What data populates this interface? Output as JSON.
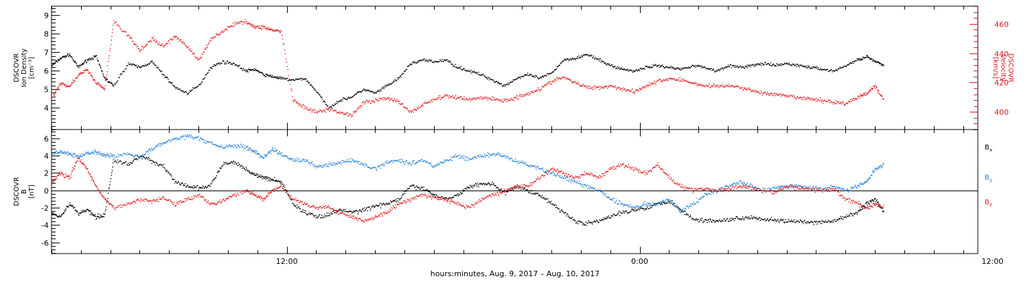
{
  "figure": {
    "x_axis_caption": "hours:minutes, Aug.  9, 2017 – Aug. 10, 2017",
    "x_tick_labels": [
      "12:00",
      "0:00",
      "12:00"
    ],
    "colors": {
      "black": "#000000",
      "red": "#e31a1c",
      "blue": "#1f7fd6"
    }
  },
  "chart_data": [
    {
      "type": "scatter",
      "panel": "plasma",
      "x": {
        "range_hours_from_midnight_aug9": [
          4.0,
          35.5
        ],
        "major_tick_hours": [
          12,
          24,
          36
        ],
        "tick_labels": [
          "12:00",
          "0:00",
          "12:00"
        ]
      },
      "y_left": {
        "label_lines": [
          "DSCOVR",
          "Ion Density",
          "[cm⁻³]"
        ],
        "range": [
          2.8,
          9.5
        ],
        "ticks": [
          4,
          5,
          6,
          7,
          8,
          9
        ],
        "tick_labels": [
          "4",
          "5",
          "6",
          "7",
          "8",
          "9"
        ]
      },
      "y_right": {
        "label_lines": [
          "DSCOVR",
          "Velocity",
          "[km/s]"
        ],
        "range": [
          388,
          472
        ],
        "ticks": [
          400,
          420,
          440,
          460
        ],
        "tick_labels": [
          "400",
          "420",
          "440",
          "460"
        ],
        "color": "#e31a1c"
      },
      "series": [
        {
          "axis": "left",
          "color": "#000000",
          "x": [
            4.0,
            4.3,
            4.6,
            4.9,
            5.2,
            5.5,
            5.8,
            6.1,
            6.6,
            7.0,
            7.4,
            7.8,
            8.2,
            8.6,
            9.0,
            9.4,
            9.8,
            10.2,
            10.6,
            10.9,
            11.2,
            11.5,
            11.8,
            12.2,
            12.6,
            13.0,
            13.4,
            13.8,
            14.2,
            14.6,
            15.0,
            15.4,
            15.8,
            16.2,
            16.6,
            17.0,
            17.4,
            17.8,
            18.2,
            18.6,
            19.0,
            19.4,
            19.8,
            20.2,
            20.6,
            21.0,
            21.4,
            21.8,
            22.2,
            22.6,
            23.0,
            23.4,
            23.8,
            24.2,
            24.6,
            25.0,
            25.4,
            25.8,
            26.2,
            26.6,
            27.0,
            27.4,
            27.8,
            28.2,
            28.6,
            29.0,
            29.4,
            29.8,
            30.2,
            30.6,
            31.0,
            31.4,
            31.7,
            32.0,
            32.3
          ],
          "y": [
            6.3,
            6.7,
            6.9,
            6.2,
            6.6,
            6.8,
            5.6,
            5.2,
            6.4,
            6.2,
            6.5,
            5.8,
            5.1,
            4.8,
            5.2,
            6.2,
            6.5,
            6.4,
            6.0,
            6.1,
            5.8,
            5.7,
            5.6,
            5.5,
            5.6,
            4.9,
            4.0,
            4.4,
            4.6,
            5.0,
            4.8,
            5.2,
            5.6,
            6.4,
            6.6,
            6.5,
            6.6,
            6.2,
            6.0,
            5.8,
            5.5,
            5.2,
            5.6,
            5.8,
            5.6,
            5.9,
            6.6,
            6.7,
            6.9,
            6.6,
            6.3,
            6.1,
            6.0,
            6.2,
            6.3,
            6.2,
            6.1,
            6.3,
            6.2,
            6.0,
            6.3,
            6.2,
            6.3,
            6.4,
            6.3,
            6.4,
            6.3,
            6.2,
            6.1,
            6.0,
            6.3,
            6.6,
            6.8,
            6.5,
            6.3
          ]
        },
        {
          "axis": "right",
          "color": "#e31a1c",
          "x": [
            4.0,
            4.3,
            4.6,
            4.9,
            5.2,
            5.5,
            5.8,
            6.1,
            6.6,
            7.0,
            7.4,
            7.8,
            8.2,
            8.6,
            9.0,
            9.4,
            9.8,
            10.2,
            10.6,
            10.9,
            11.2,
            11.5,
            11.8,
            12.2,
            12.6,
            13.0,
            13.4,
            13.8,
            14.2,
            14.6,
            15.0,
            15.4,
            15.8,
            16.2,
            16.6,
            17.0,
            17.4,
            17.8,
            18.2,
            18.6,
            19.0,
            19.4,
            19.8,
            20.2,
            20.6,
            21.0,
            21.4,
            21.8,
            22.2,
            22.6,
            23.0,
            23.4,
            23.8,
            24.2,
            24.6,
            25.0,
            25.4,
            25.8,
            26.2,
            26.6,
            27.0,
            27.4,
            27.8,
            28.2,
            28.6,
            29.0,
            29.4,
            29.8,
            30.2,
            30.6,
            31.0,
            31.4,
            31.7,
            32.0,
            32.3
          ],
          "y": [
            410,
            420,
            418,
            425,
            429,
            420,
            416,
            462,
            452,
            442,
            450,
            445,
            452,
            445,
            435,
            450,
            455,
            460,
            462,
            458,
            458,
            456,
            455,
            408,
            403,
            400,
            402,
            400,
            398,
            407,
            408,
            410,
            407,
            400,
            405,
            409,
            411,
            410,
            409,
            410,
            409,
            408,
            410,
            413,
            416,
            421,
            424,
            420,
            417,
            417,
            418,
            416,
            414,
            418,
            421,
            423,
            422,
            420,
            418,
            418,
            418,
            417,
            415,
            413,
            412,
            411,
            410,
            409,
            408,
            407,
            406,
            410,
            413,
            418,
            408
          ]
        }
      ]
    },
    {
      "type": "scatter",
      "panel": "magnetic-field",
      "x": {
        "range_hours_from_midnight_aug9": [
          4.0,
          35.5
        ],
        "major_tick_hours": [
          12,
          24,
          36
        ],
        "tick_labels": [
          "12:00",
          "0:00",
          "12:00"
        ]
      },
      "y": {
        "label_lines": [
          "DSCOVR",
          "B",
          "[nT]"
        ],
        "range": [
          -7.3,
          7.0
        ],
        "ticks": [
          -6,
          -4,
          -2,
          0,
          2,
          4,
          6
        ],
        "tick_labels": [
          "-6",
          "-4",
          "-2",
          "0",
          "2",
          "4",
          "6"
        ],
        "zero_line": true
      },
      "series": [
        {
          "name": "Bx",
          "color": "#000000",
          "x": [
            4.0,
            4.3,
            4.6,
            4.9,
            5.2,
            5.5,
            5.8,
            6.1,
            6.6,
            7.0,
            7.4,
            7.8,
            8.2,
            8.6,
            9.0,
            9.4,
            9.8,
            10.2,
            10.6,
            10.9,
            11.2,
            11.5,
            11.8,
            12.2,
            12.6,
            13.0,
            13.4,
            13.8,
            14.2,
            14.6,
            15.0,
            15.4,
            15.8,
            16.2,
            16.6,
            17.0,
            17.4,
            17.8,
            18.2,
            18.6,
            19.0,
            19.4,
            19.8,
            20.2,
            20.6,
            21.0,
            21.4,
            21.8,
            22.2,
            22.6,
            23.0,
            23.4,
            23.8,
            24.2,
            24.6,
            25.0,
            25.4,
            25.8,
            26.2,
            26.6,
            27.0,
            27.4,
            27.8,
            28.2,
            28.6,
            29.0,
            29.4,
            29.8,
            30.2,
            30.6,
            31.0,
            31.4,
            31.7,
            32.0,
            32.3
          ],
          "y": [
            -2.5,
            -3.0,
            -1.5,
            -2.6,
            -2.2,
            -3.0,
            -2.8,
            3.5,
            3.0,
            4.0,
            3.4,
            2.8,
            1.0,
            0.5,
            0.3,
            0.6,
            3.0,
            3.3,
            2.5,
            1.8,
            1.5,
            1.3,
            1.0,
            -1.5,
            -2.5,
            -3.0,
            -2.8,
            -2.2,
            -2.5,
            -2.2,
            -1.8,
            -1.5,
            -1.0,
            0.5,
            0.3,
            -0.5,
            -1.0,
            -0.5,
            0.5,
            0.8,
            0.8,
            -0.3,
            0.5,
            0.0,
            -0.5,
            -1.5,
            -2.5,
            -3.5,
            -3.8,
            -3.5,
            -3.0,
            -2.5,
            -2.2,
            -2.0,
            -1.5,
            -1.2,
            -2.2,
            -3.3,
            -3.4,
            -3.5,
            -3.3,
            -3.2,
            -3.0,
            -3.3,
            -3.4,
            -3.5,
            -3.6,
            -3.7,
            -3.6,
            -3.5,
            -3.0,
            -2.5,
            -1.5,
            -1.0,
            -2.5
          ]
        },
        {
          "name": "By",
          "color": "#1f7fd6",
          "x": [
            4.0,
            4.3,
            4.6,
            4.9,
            5.2,
            5.5,
            5.8,
            6.1,
            6.6,
            7.0,
            7.4,
            7.8,
            8.2,
            8.6,
            9.0,
            9.4,
            9.8,
            10.2,
            10.6,
            10.9,
            11.2,
            11.5,
            11.8,
            12.2,
            12.6,
            13.0,
            13.4,
            13.8,
            14.2,
            14.6,
            15.0,
            15.4,
            15.8,
            16.2,
            16.6,
            17.0,
            17.4,
            17.8,
            18.2,
            18.6,
            19.0,
            19.4,
            19.8,
            20.2,
            20.6,
            21.0,
            21.4,
            21.8,
            22.2,
            22.6,
            23.0,
            23.4,
            23.8,
            24.2,
            24.6,
            25.0,
            25.4,
            25.8,
            26.2,
            26.6,
            27.0,
            27.4,
            27.8,
            28.2,
            28.6,
            29.0,
            29.4,
            29.8,
            30.2,
            30.6,
            31.0,
            31.4,
            31.7,
            32.0,
            32.3
          ],
          "y": [
            4.2,
            4.5,
            4.2,
            4.0,
            4.3,
            4.5,
            4.1,
            4.0,
            4.2,
            4.0,
            4.8,
            5.5,
            6.0,
            6.3,
            6.0,
            5.5,
            5.0,
            5.2,
            5.0,
            4.5,
            3.8,
            4.8,
            4.2,
            3.5,
            3.5,
            2.8,
            3.0,
            3.2,
            3.5,
            3.0,
            2.5,
            3.3,
            3.5,
            3.2,
            3.5,
            2.8,
            3.5,
            4.0,
            3.6,
            4.0,
            4.2,
            4.0,
            3.3,
            3.0,
            2.5,
            2.0,
            1.5,
            1.0,
            0.5,
            0.0,
            -1.0,
            -1.5,
            -2.0,
            -1.5,
            -1.5,
            -1.0,
            -2.5,
            -1.5,
            -0.5,
            0.0,
            0.5,
            1.0,
            0.5,
            0.0,
            0.3,
            0.5,
            0.5,
            0.3,
            0.2,
            0.5,
            0.0,
            0.5,
            1.0,
            2.5,
            3.0
          ]
        },
        {
          "name": "Bz",
          "color": "#e31a1c",
          "x": [
            4.0,
            4.3,
            4.6,
            4.9,
            5.2,
            5.5,
            5.8,
            6.1,
            6.6,
            7.0,
            7.4,
            7.8,
            8.2,
            8.6,
            9.0,
            9.4,
            9.8,
            10.2,
            10.6,
            10.9,
            11.2,
            11.5,
            11.8,
            12.2,
            12.6,
            13.0,
            13.4,
            13.8,
            14.2,
            14.6,
            15.0,
            15.4,
            15.8,
            16.2,
            16.6,
            17.0,
            17.4,
            17.8,
            18.2,
            18.6,
            19.0,
            19.4,
            19.8,
            20.2,
            20.6,
            21.0,
            21.4,
            21.8,
            22.2,
            22.6,
            23.0,
            23.4,
            23.8,
            24.2,
            24.6,
            25.0,
            25.4,
            25.8,
            26.2,
            26.6,
            27.0,
            27.4,
            27.8,
            28.2,
            28.6,
            29.0,
            29.4,
            29.8,
            30.2,
            30.6,
            31.0,
            31.4,
            31.7,
            32.0,
            32.3
          ],
          "y": [
            1.0,
            2.0,
            1.5,
            3.8,
            2.5,
            0.5,
            -1.0,
            -2.0,
            -1.5,
            -1.0,
            -1.2,
            -0.8,
            -1.5,
            -1.0,
            -0.5,
            -1.5,
            -1.2,
            -0.5,
            0.0,
            -0.5,
            -1.0,
            0.0,
            0.5,
            -1.0,
            -1.5,
            -2.0,
            -1.8,
            -2.5,
            -3.0,
            -3.5,
            -3.0,
            -2.5,
            -1.5,
            -1.0,
            -0.5,
            -0.8,
            -1.0,
            -1.5,
            -2.0,
            -1.0,
            -0.5,
            0.0,
            0.5,
            0.5,
            1.5,
            2.5,
            2.0,
            1.5,
            2.0,
            1.5,
            2.5,
            3.0,
            2.5,
            2.0,
            3.0,
            1.5,
            0.5,
            0.0,
            0.3,
            0.0,
            0.2,
            0.5,
            0.3,
            0.0,
            -0.2,
            0.5,
            0.3,
            0.2,
            0.0,
            0.2,
            -1.0,
            -1.5,
            -2.0,
            -1.5,
            -2.0
          ]
        }
      ]
    }
  ]
}
